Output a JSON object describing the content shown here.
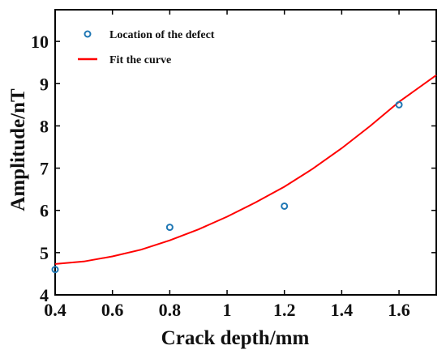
{
  "chart_data": {
    "type": "scatter",
    "xlabel": "Crack depth/mm",
    "ylabel": "Amplitude/nT",
    "xlim": [
      0.4,
      1.73
    ],
    "ylim": [
      4,
      10.75
    ],
    "xticks": [
      "0.4",
      "0.6",
      "0.8",
      "1",
      "1.2",
      "1.4",
      "1.6"
    ],
    "yticks": [
      "4",
      "5",
      "6",
      "7",
      "8",
      "9",
      "10"
    ],
    "grid": false,
    "legend_position": "top-left",
    "series": [
      {
        "name": "Location of the defect",
        "type": "scatter",
        "color": "#1f77b4",
        "x": [
          0.4,
          0.8,
          1.2,
          1.6
        ],
        "y": [
          4.6,
          5.6,
          6.1,
          8.5
        ]
      },
      {
        "name": "Fit the curve",
        "type": "line",
        "color": "#ff0000",
        "x": [
          0.4,
          0.5,
          0.6,
          0.7,
          0.8,
          0.9,
          1.0,
          1.1,
          1.2,
          1.3,
          1.4,
          1.5,
          1.6,
          1.73
        ],
        "y": [
          4.73,
          4.79,
          4.91,
          5.07,
          5.29,
          5.55,
          5.85,
          6.19,
          6.56,
          6.99,
          7.47,
          8.0,
          8.57,
          9.2
        ]
      }
    ]
  }
}
